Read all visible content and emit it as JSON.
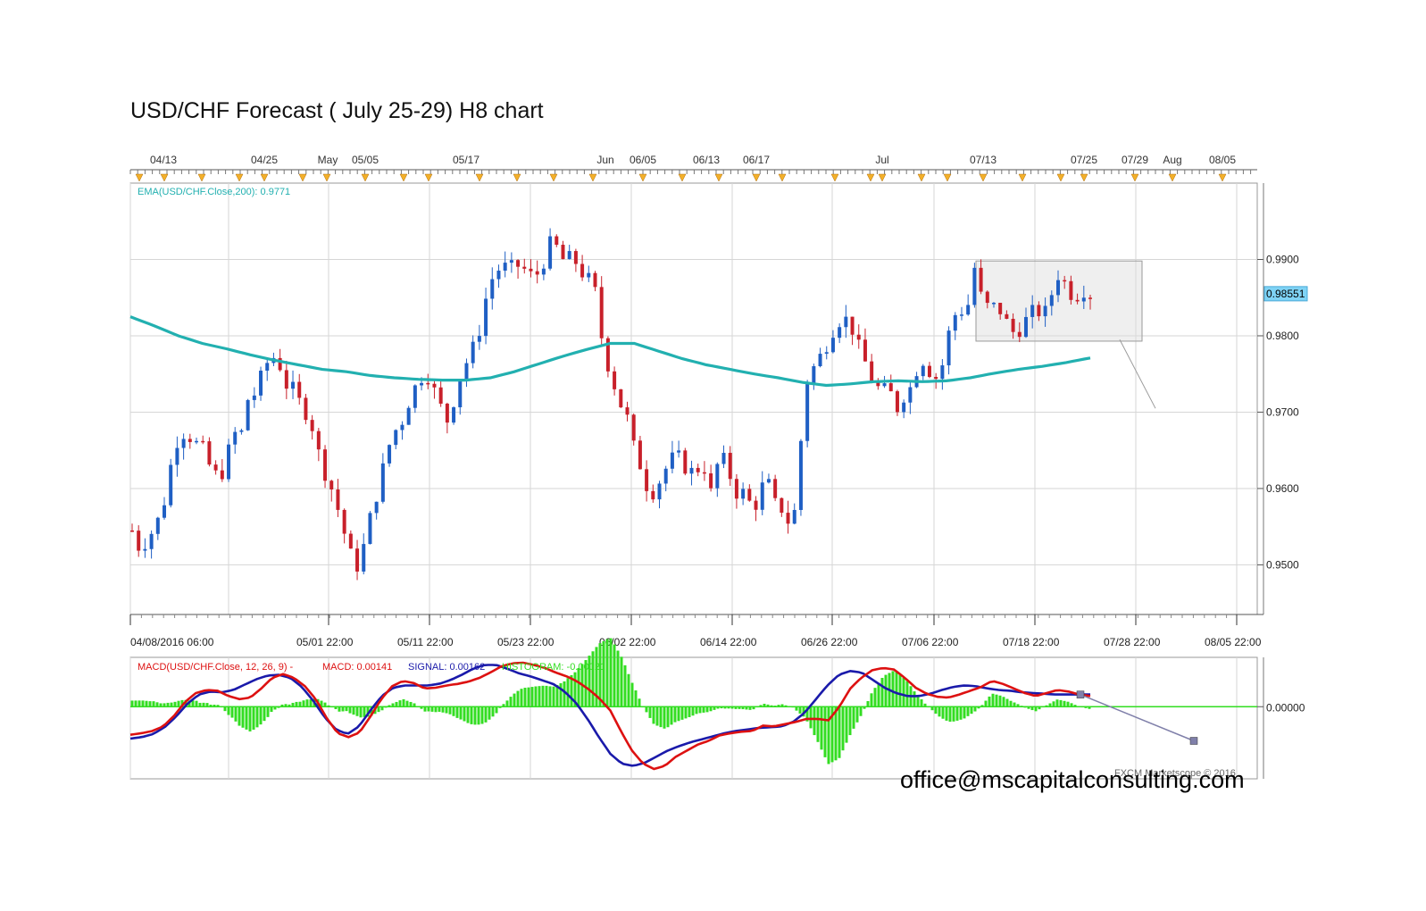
{
  "title": "USD/CHF Forecast ( July 25-29) H8 chart",
  "watermark": "office@mscapitalconsulting.com",
  "copyright": "FXCM Marketscope © 2016",
  "colors": {
    "bull": "#1f5fc4",
    "bear": "#c8202a",
    "ema": "#22b0b0",
    "macd": "#dd1111",
    "signal": "#1a1aaa",
    "hist": "#33dd22",
    "price_tag": "#7fd3f5",
    "grid": "#d6d6d6",
    "event": "#f3b02a"
  },
  "chart_data": [
    {
      "type": "candlestick",
      "instrument": "USD/CHF",
      "timeframe": "H8",
      "indicator_label": "EMA(USD/CHF.Close,200): 0.9771",
      "last_price_label": "0.98551",
      "ylim": [
        0.9435,
        1.0
      ],
      "y_ticks": [
        "0.9900",
        "0.9800",
        "0.9700",
        "0.9600",
        "0.9500"
      ],
      "top_date_labels": [
        "04/13",
        "04/25",
        "May",
        "05/05",
        "05/17",
        "Jun",
        "06/05",
        "06/13",
        "06/17",
        "Jul",
        "07/13",
        "07/25",
        "07/29",
        "Aug",
        "08/05"
      ],
      "bottom_date_labels": [
        "04/08/2016 06:00",
        "05/01 22:00",
        "05/11 22:00",
        "05/23 22:00",
        "06/02 22:00",
        "06/14 22:00",
        "06/26 22:00",
        "07/06 22:00",
        "07/18 22:00",
        "07/28 22:00",
        "08/05 22:00"
      ],
      "close_path": [
        0.9545,
        0.952,
        0.9535,
        0.955,
        0.9575,
        0.963,
        0.967,
        0.9675,
        0.966,
        0.9655,
        0.963,
        0.9615,
        0.9625,
        0.9675,
        0.9665,
        0.9718,
        0.9725,
        0.9755,
        0.9775,
        0.9765,
        0.9735,
        0.9728,
        0.9705,
        0.9695,
        0.965,
        0.962,
        0.9595,
        0.956,
        0.952,
        0.9495,
        0.9525,
        0.957,
        0.9605,
        0.965,
        0.9675,
        0.969,
        0.972,
        0.974,
        0.9755,
        0.973,
        0.9705,
        0.9685,
        0.9735,
        0.976,
        0.978,
        0.981,
        0.986,
        0.9885,
        0.989,
        0.9888,
        0.9892,
        0.9885,
        0.9875,
        0.989,
        0.992,
        0.9915,
        0.9895,
        0.9905,
        0.9885,
        0.9875,
        0.9855,
        0.978,
        0.975,
        0.9715,
        0.9695,
        0.965,
        0.9625,
        0.959,
        0.9605,
        0.9625,
        0.964,
        0.964,
        0.962,
        0.9625,
        0.963,
        0.959,
        0.9645,
        0.963,
        0.9595,
        0.9595,
        0.958,
        0.958,
        0.962,
        0.958,
        0.9575,
        0.9555,
        0.9575,
        0.9735,
        0.9755,
        0.9772,
        0.9792,
        0.9815,
        0.9825,
        0.9815,
        0.9785,
        0.9762,
        0.9735,
        0.9728,
        0.9728,
        0.9705,
        0.9725,
        0.9735,
        0.9775,
        0.9757,
        0.9745,
        0.9765,
        0.982,
        0.9835,
        0.983,
        0.989,
        0.9845,
        0.9835,
        0.984,
        0.982,
        0.9805,
        0.981,
        0.9825,
        0.9835,
        0.9825,
        0.9855,
        0.9885,
        0.9862,
        0.985,
        0.9862,
        0.9855
      ],
      "ema200_path": [
        0.9825,
        0.9813,
        0.98,
        0.979,
        0.9783,
        0.9775,
        0.9768,
        0.9762,
        0.9756,
        0.9753,
        0.9748,
        0.9745,
        0.9743,
        0.9742,
        0.9742,
        0.9745,
        0.9753,
        0.9763,
        0.9773,
        0.9782,
        0.979,
        0.979,
        0.978,
        0.977,
        0.9762,
        0.9756,
        0.975,
        0.9745,
        0.9739,
        0.9735,
        0.9737,
        0.974,
        0.9741,
        0.974,
        0.9741,
        0.9745,
        0.9751,
        0.9756,
        0.976,
        0.9765,
        0.9771
      ],
      "forecast_range_box": {
        "start": "07/13",
        "end": "07/29",
        "low": 0.9793,
        "high": 0.9898
      },
      "forecast_line": {
        "from": 0.9795,
        "to": 0.9705
      }
    },
    {
      "type": "line",
      "label": "MACD(USD/CHF.Close, 12, 26, 9) -",
      "series": [
        {
          "name": "MACD",
          "value_label": "MACD: 0.00141"
        },
        {
          "name": "SIGNAL",
          "value_label": "SIGNAL: 0.00162"
        },
        {
          "name": "HISTOGRAM",
          "value_label": "HISTOGRAM: -0.00021"
        }
      ],
      "zero_label": "0.00000",
      "ylim": [
        -0.0095,
        0.0065
      ],
      "macd_path": [
        -0.0037,
        -0.0035,
        -0.0032,
        -0.0026,
        -0.0012,
        0.0006,
        0.0018,
        0.0022,
        0.0021,
        0.0014,
        0.001,
        0.0012,
        0.0024,
        0.0038,
        0.0043,
        0.0038,
        0.0027,
        0.001,
        -0.0015,
        -0.0035,
        -0.004,
        -0.0034,
        -0.0013,
        0.001,
        0.0027,
        0.0034,
        0.0031,
        0.0024,
        0.0025,
        0.0028,
        0.003,
        0.0033,
        0.0038,
        0.0045,
        0.0053,
        0.0057,
        0.0058,
        0.0055,
        0.0051,
        0.0045,
        0.004,
        0.0033,
        0.0023,
        0.0011,
        -0.0005,
        -0.0033,
        -0.0058,
        -0.0075,
        -0.0082,
        -0.0078,
        -0.0066,
        -0.0058,
        -0.005,
        -0.0045,
        -0.0038,
        -0.0035,
        -0.0033,
        -0.0032,
        -0.0025,
        -0.0026,
        -0.0023,
        -0.002,
        -0.0016,
        -0.0016,
        -0.0018,
        0.0,
        0.0024,
        0.0038,
        0.0048,
        0.0051,
        0.0049,
        0.0038,
        0.0025,
        0.0017,
        0.0013,
        0.0012,
        0.0016,
        0.0021,
        0.0026,
        0.0034,
        0.003,
        0.0024,
        0.0018,
        0.0014,
        0.0018,
        0.0022,
        0.002,
        0.0016,
        0.0014
      ],
      "signal_path": [
        -0.0042,
        -0.004,
        -0.0036,
        -0.0027,
        -0.0013,
        0.0004,
        0.0016,
        0.002,
        0.0019,
        0.0022,
        0.0029,
        0.0036,
        0.0041,
        0.0042,
        0.0038,
        0.0026,
        0.0008,
        -0.0014,
        -0.003,
        -0.0036,
        -0.0026,
        -0.0005,
        0.0014,
        0.0025,
        0.0028,
        0.0028,
        0.0028,
        0.003,
        0.0035,
        0.0042,
        0.005,
        0.0055,
        0.0055,
        0.005,
        0.0044,
        0.004,
        0.0035,
        0.003,
        0.002,
        0.0005,
        -0.0016,
        -0.004,
        -0.0062,
        -0.0075,
        -0.0078,
        -0.0074,
        -0.0066,
        -0.0058,
        -0.0052,
        -0.0047,
        -0.0043,
        -0.0039,
        -0.0035,
        -0.0032,
        -0.003,
        -0.0028,
        -0.0027,
        -0.0026,
        -0.002,
        -0.0008,
        0.001,
        0.0028,
        0.0042,
        0.0047,
        0.0045,
        0.0035,
        0.0025,
        0.0018,
        0.0014,
        0.0014,
        0.0017,
        0.0022,
        0.0026,
        0.0028,
        0.0027,
        0.0024,
        0.0022,
        0.0021,
        0.0019,
        0.0018,
        0.0017,
        0.0016,
        0.0016,
        0.0016,
        0.0016
      ],
      "forecast_line": {
        "from": 0.0016,
        "to": -0.0045
      }
    }
  ]
}
